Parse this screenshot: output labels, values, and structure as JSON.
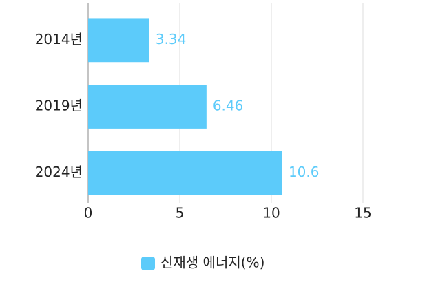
{
  "chart_data": {
    "type": "bar",
    "orientation": "horizontal",
    "categories": [
      "2014년",
      "2019년",
      "2024년"
    ],
    "series": [
      {
        "name": "신재생 에너지(%)",
        "color": "#5ccbfa",
        "values": [
          3.34,
          6.46,
          10.6
        ]
      }
    ],
    "xlim": [
      0,
      15
    ],
    "xticks": [
      0,
      5,
      10,
      15
    ],
    "grid": true,
    "legend": "bottom"
  }
}
